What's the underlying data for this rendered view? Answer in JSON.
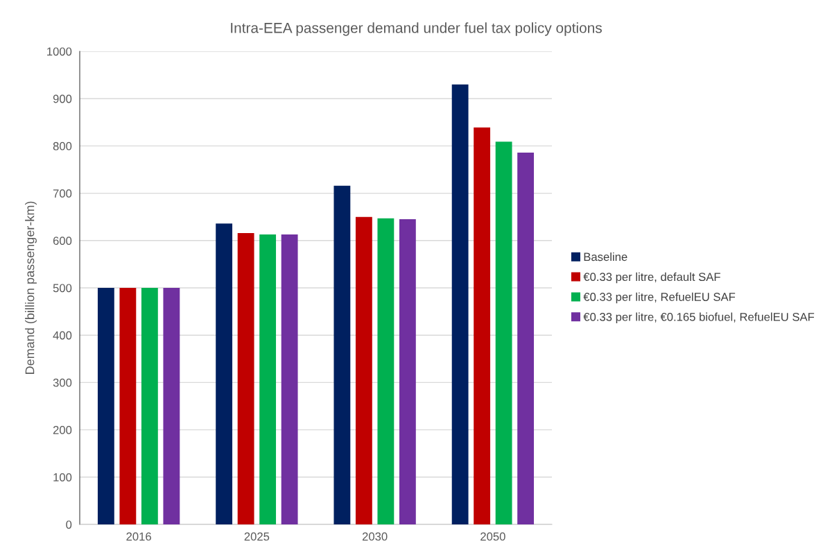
{
  "chart_data": {
    "type": "bar",
    "title": "Intra-EEA passenger demand under fuel tax policy options",
    "ylabel": "Demand (billion passenger-km)",
    "categories": [
      "2016",
      "2025",
      "2030",
      "2050"
    ],
    "series": [
      {
        "name": "Baseline",
        "color": "#002060",
        "values": [
          500,
          636,
          716,
          930
        ]
      },
      {
        "name": "€0.33 per litre, default SAF",
        "color": "#c00000",
        "values": [
          500,
          616,
          650,
          839
        ]
      },
      {
        "name": "€0.33 per litre, RefuelEU SAF",
        "color": "#00b050",
        "values": [
          500,
          613,
          647,
          809
        ]
      },
      {
        "name": "€0.33 per litre, €0.165 biofuel, RefuelEU SAF",
        "color": "#7030a0",
        "values": [
          500,
          613,
          645,
          786
        ]
      }
    ],
    "ylim": [
      0,
      1000
    ],
    "yticks": [
      0,
      100,
      200,
      300,
      400,
      500,
      600,
      700,
      800,
      900,
      1000
    ],
    "grid": "y",
    "legend": "right"
  }
}
